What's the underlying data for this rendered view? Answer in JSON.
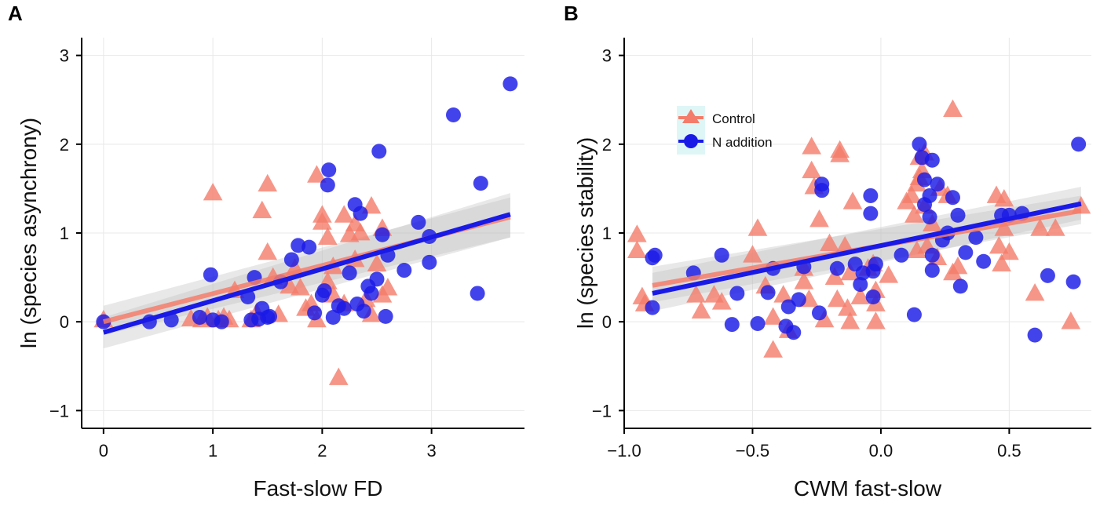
{
  "chart_data": [
    {
      "panel": "A",
      "type": "scatter",
      "xlabel": "Fast-slow FD",
      "ylabel": "ln (species asynchrony)",
      "xlim": [
        -0.2,
        3.85
      ],
      "ylim": [
        -1.2,
        3.2
      ],
      "xticks": [
        0,
        1,
        2,
        3
      ],
      "xtick_labels": [
        "0",
        "1",
        "2",
        "3"
      ],
      "yticks": [
        -1,
        0,
        1,
        2,
        3
      ],
      "ytick_labels": [
        "−1",
        "0",
        "1",
        "2",
        "3"
      ],
      "series": [
        {
          "name": "Control",
          "marker": "triangle",
          "color": "#f47c6a",
          "points": [
            [
              0.0,
              0.02
            ],
            [
              0.8,
              0.03
            ],
            [
              0.9,
              0.02
            ],
            [
              0.95,
              0.05
            ],
            [
              1.0,
              1.45
            ],
            [
              1.05,
              0.02
            ],
            [
              1.1,
              0.05
            ],
            [
              1.15,
              0.02
            ],
            [
              1.2,
              0.35
            ],
            [
              1.35,
              0.02
            ],
            [
              1.4,
              0.1
            ],
            [
              1.45,
              1.25
            ],
            [
              1.5,
              1.55
            ],
            [
              1.5,
              0.78
            ],
            [
              1.55,
              0.5
            ],
            [
              1.6,
              0.08
            ],
            [
              1.7,
              0.4
            ],
            [
              1.75,
              0.6
            ],
            [
              1.8,
              0.38
            ],
            [
              1.85,
              0.15
            ],
            [
              1.9,
              0.2
            ],
            [
              1.95,
              1.65
            ],
            [
              1.95,
              0.02
            ],
            [
              2.0,
              1.2
            ],
            [
              2.0,
              1.12
            ],
            [
              2.05,
              0.45
            ],
            [
              2.05,
              0.95
            ],
            [
              2.1,
              0.62
            ],
            [
              2.1,
              0.3
            ],
            [
              2.15,
              -0.63
            ],
            [
              2.2,
              0.2
            ],
            [
              2.2,
              1.2
            ],
            [
              2.25,
              0.98
            ],
            [
              2.3,
              1.1
            ],
            [
              2.3,
              0.7
            ],
            [
              2.35,
              1.0
            ],
            [
              2.4,
              0.25
            ],
            [
              2.45,
              1.3
            ],
            [
              2.45,
              0.08
            ],
            [
              2.5,
              0.65
            ],
            [
              2.55,
              1.05
            ],
            [
              2.55,
              0.3
            ],
            [
              2.6,
              0.38
            ]
          ]
        },
        {
          "name": "N addition",
          "marker": "circle",
          "color": "#1a1ae6",
          "points": [
            [
              0.0,
              0.0
            ],
            [
              0.42,
              0.0
            ],
            [
              0.62,
              0.02
            ],
            [
              0.88,
              0.05
            ],
            [
              0.98,
              0.53
            ],
            [
              1.0,
              0.02
            ],
            [
              1.08,
              0.0
            ],
            [
              1.32,
              0.28
            ],
            [
              1.35,
              0.02
            ],
            [
              1.38,
              0.5
            ],
            [
              1.42,
              0.03
            ],
            [
              1.45,
              0.15
            ],
            [
              1.5,
              0.05
            ],
            [
              1.52,
              0.06
            ],
            [
              1.62,
              0.45
            ],
            [
              1.72,
              0.7
            ],
            [
              1.78,
              0.86
            ],
            [
              1.88,
              0.84
            ],
            [
              1.93,
              0.1
            ],
            [
              2.0,
              0.3
            ],
            [
              2.02,
              0.35
            ],
            [
              2.05,
              1.54
            ],
            [
              2.06,
              1.71
            ],
            [
              2.1,
              0.05
            ],
            [
              2.15,
              0.18
            ],
            [
              2.2,
              0.15
            ],
            [
              2.25,
              0.55
            ],
            [
              2.3,
              1.32
            ],
            [
              2.32,
              0.2
            ],
            [
              2.35,
              1.22
            ],
            [
              2.38,
              0.12
            ],
            [
              2.42,
              0.4
            ],
            [
              2.45,
              0.32
            ],
            [
              2.5,
              0.48
            ],
            [
              2.52,
              1.92
            ],
            [
              2.55,
              0.98
            ],
            [
              2.58,
              0.06
            ],
            [
              2.6,
              0.75
            ],
            [
              2.75,
              0.58
            ],
            [
              2.88,
              1.12
            ],
            [
              2.98,
              0.96
            ],
            [
              2.98,
              0.67
            ],
            [
              3.2,
              2.33
            ],
            [
              3.42,
              0.32
            ],
            [
              3.45,
              1.56
            ],
            [
              3.72,
              2.68
            ]
          ]
        }
      ],
      "fits": [
        {
          "name": "Control",
          "color": "#f47c6a",
          "x": [
            0.0,
            3.72
          ],
          "y": [
            0.0,
            1.18
          ],
          "ci_low": [
            -0.15,
            0.95
          ],
          "ci_high": [
            0.18,
            1.4
          ]
        },
        {
          "name": "N addition",
          "color": "#1a1ae6",
          "x": [
            0.0,
            3.72
          ],
          "y": [
            -0.12,
            1.21
          ],
          "ci_low": [
            -0.3,
            0.95
          ],
          "ci_high": [
            0.05,
            1.45
          ]
        }
      ]
    },
    {
      "panel": "B",
      "type": "scatter",
      "xlabel": "CWM fast-slow",
      "ylabel": "ln (species stability)",
      "xlim": [
        -1.0,
        0.82
      ],
      "ylim": [
        -1.2,
        3.2
      ],
      "xticks": [
        -1.0,
        -0.5,
        0.0,
        0.5
      ],
      "xtick_labels": [
        "−1.0",
        "−0.5",
        "0.0",
        "0.5"
      ],
      "yticks": [
        -1,
        0,
        1,
        2,
        3
      ],
      "ytick_labels": [
        "−1",
        "0",
        "1",
        "2",
        "3"
      ],
      "legend": {
        "position": "upper-left",
        "entries": [
          {
            "label": "Control",
            "marker": "triangle",
            "color": "#f47c6a"
          },
          {
            "label": "N addition",
            "marker": "circle",
            "color": "#1a1ae6"
          }
        ]
      },
      "series": [
        {
          "name": "Control",
          "marker": "triangle",
          "color": "#f47c6a",
          "points": [
            [
              -0.95,
              0.98
            ],
            [
              -0.95,
              0.8
            ],
            [
              -0.93,
              0.28
            ],
            [
              -0.92,
              0.2
            ],
            [
              -0.72,
              0.3
            ],
            [
              -0.7,
              0.12
            ],
            [
              -0.65,
              0.3
            ],
            [
              -0.62,
              0.22
            ],
            [
              -0.5,
              0.75
            ],
            [
              -0.48,
              1.05
            ],
            [
              -0.45,
              0.4
            ],
            [
              -0.42,
              0.05
            ],
            [
              -0.42,
              -0.32
            ],
            [
              -0.38,
              0.3
            ],
            [
              -0.36,
              -0.1
            ],
            [
              -0.3,
              0.6
            ],
            [
              -0.3,
              0.45
            ],
            [
              -0.28,
              0.25
            ],
            [
              -0.27,
              1.97
            ],
            [
              -0.27,
              1.7
            ],
            [
              -0.26,
              1.52
            ],
            [
              -0.24,
              1.15
            ],
            [
              -0.22,
              0.02
            ],
            [
              -0.2,
              0.88
            ],
            [
              -0.18,
              0.5
            ],
            [
              -0.17,
              0.25
            ],
            [
              -0.16,
              1.93
            ],
            [
              -0.16,
              1.88
            ],
            [
              -0.14,
              0.85
            ],
            [
              -0.13,
              0.15
            ],
            [
              -0.12,
              0.55
            ],
            [
              -0.12,
              0.0
            ],
            [
              -0.11,
              1.35
            ],
            [
              -0.08,
              0.28
            ],
            [
              -0.05,
              0.6
            ],
            [
              -0.03,
              0.65
            ],
            [
              -0.02,
              0.35
            ],
            [
              -0.02,
              0.2
            ],
            [
              -0.02,
              0.0
            ],
            [
              0.03,
              0.52
            ],
            [
              0.1,
              1.35
            ],
            [
              0.12,
              1.42
            ],
            [
              0.13,
              1.2
            ],
            [
              0.14,
              0.8
            ],
            [
              0.14,
              1.55
            ],
            [
              0.15,
              1.62
            ],
            [
              0.15,
              1.85
            ],
            [
              0.16,
              1.7
            ],
            [
              0.17,
              1.9
            ],
            [
              0.17,
              1.3
            ],
            [
              0.18,
              0.85
            ],
            [
              0.2,
              1.1
            ],
            [
              0.22,
              0.72
            ],
            [
              0.23,
              1.5
            ],
            [
              0.26,
              1.42
            ],
            [
              0.28,
              0.55
            ],
            [
              0.28,
              2.39
            ],
            [
              0.3,
              0.62
            ],
            [
              0.45,
              1.42
            ],
            [
              0.46,
              0.85
            ],
            [
              0.47,
              0.65
            ],
            [
              0.48,
              1.05
            ],
            [
              0.48,
              1.38
            ],
            [
              0.5,
              0.78
            ],
            [
              0.6,
              0.32
            ],
            [
              0.62,
              1.05
            ],
            [
              0.68,
              1.05
            ],
            [
              0.74,
              0.0
            ],
            [
              0.78,
              1.3
            ]
          ]
        },
        {
          "name": "N addition",
          "marker": "circle",
          "color": "#1a1ae6",
          "points": [
            [
              -0.89,
              0.16
            ],
            [
              -0.89,
              0.72
            ],
            [
              -0.88,
              0.75
            ],
            [
              -0.73,
              0.55
            ],
            [
              -0.62,
              0.75
            ],
            [
              -0.58,
              -0.03
            ],
            [
              -0.56,
              0.32
            ],
            [
              -0.48,
              -0.02
            ],
            [
              -0.44,
              0.33
            ],
            [
              -0.42,
              0.6
            ],
            [
              -0.37,
              -0.05
            ],
            [
              -0.36,
              0.17
            ],
            [
              -0.34,
              -0.12
            ],
            [
              -0.32,
              0.25
            ],
            [
              -0.3,
              0.62
            ],
            [
              -0.24,
              0.1
            ],
            [
              -0.23,
              1.48
            ],
            [
              -0.23,
              1.55
            ],
            [
              -0.17,
              0.6
            ],
            [
              -0.08,
              0.42
            ],
            [
              -0.04,
              1.22
            ],
            [
              -0.04,
              1.42
            ],
            [
              -0.03,
              0.28
            ],
            [
              -0.03,
              0.57
            ],
            [
              -0.02,
              0.65
            ],
            [
              -0.1,
              0.65
            ],
            [
              -0.07,
              0.55
            ],
            [
              0.08,
              0.75
            ],
            [
              0.13,
              0.08
            ],
            [
              0.15,
              2.0
            ],
            [
              0.16,
              1.85
            ],
            [
              0.17,
              1.6
            ],
            [
              0.17,
              1.32
            ],
            [
              0.19,
              1.18
            ],
            [
              0.19,
              1.42
            ],
            [
              0.2,
              1.82
            ],
            [
              0.2,
              0.75
            ],
            [
              0.2,
              0.58
            ],
            [
              0.22,
              1.55
            ],
            [
              0.24,
              0.92
            ],
            [
              0.26,
              1.0
            ],
            [
              0.28,
              1.4
            ],
            [
              0.3,
              1.2
            ],
            [
              0.31,
              0.4
            ],
            [
              0.33,
              0.78
            ],
            [
              0.37,
              0.95
            ],
            [
              0.4,
              0.68
            ],
            [
              0.47,
              1.2
            ],
            [
              0.5,
              1.2
            ],
            [
              0.55,
              1.22
            ],
            [
              0.6,
              -0.15
            ],
            [
              0.65,
              0.52
            ],
            [
              0.75,
              0.45
            ],
            [
              0.77,
              2.0
            ]
          ]
        }
      ],
      "fits": [
        {
          "name": "Control",
          "color": "#f47c6a",
          "x": [
            -0.89,
            0.78
          ],
          "y": [
            0.41,
            1.25
          ],
          "ci_low": [
            0.22,
            1.1
          ],
          "ci_high": [
            0.62,
            1.42
          ]
        },
        {
          "name": "N addition",
          "color": "#1a1ae6",
          "x": [
            -0.89,
            0.78
          ],
          "y": [
            0.32,
            1.33
          ],
          "ci_low": [
            0.12,
            1.15
          ],
          "ci_high": [
            0.55,
            1.52
          ]
        }
      ]
    }
  ]
}
